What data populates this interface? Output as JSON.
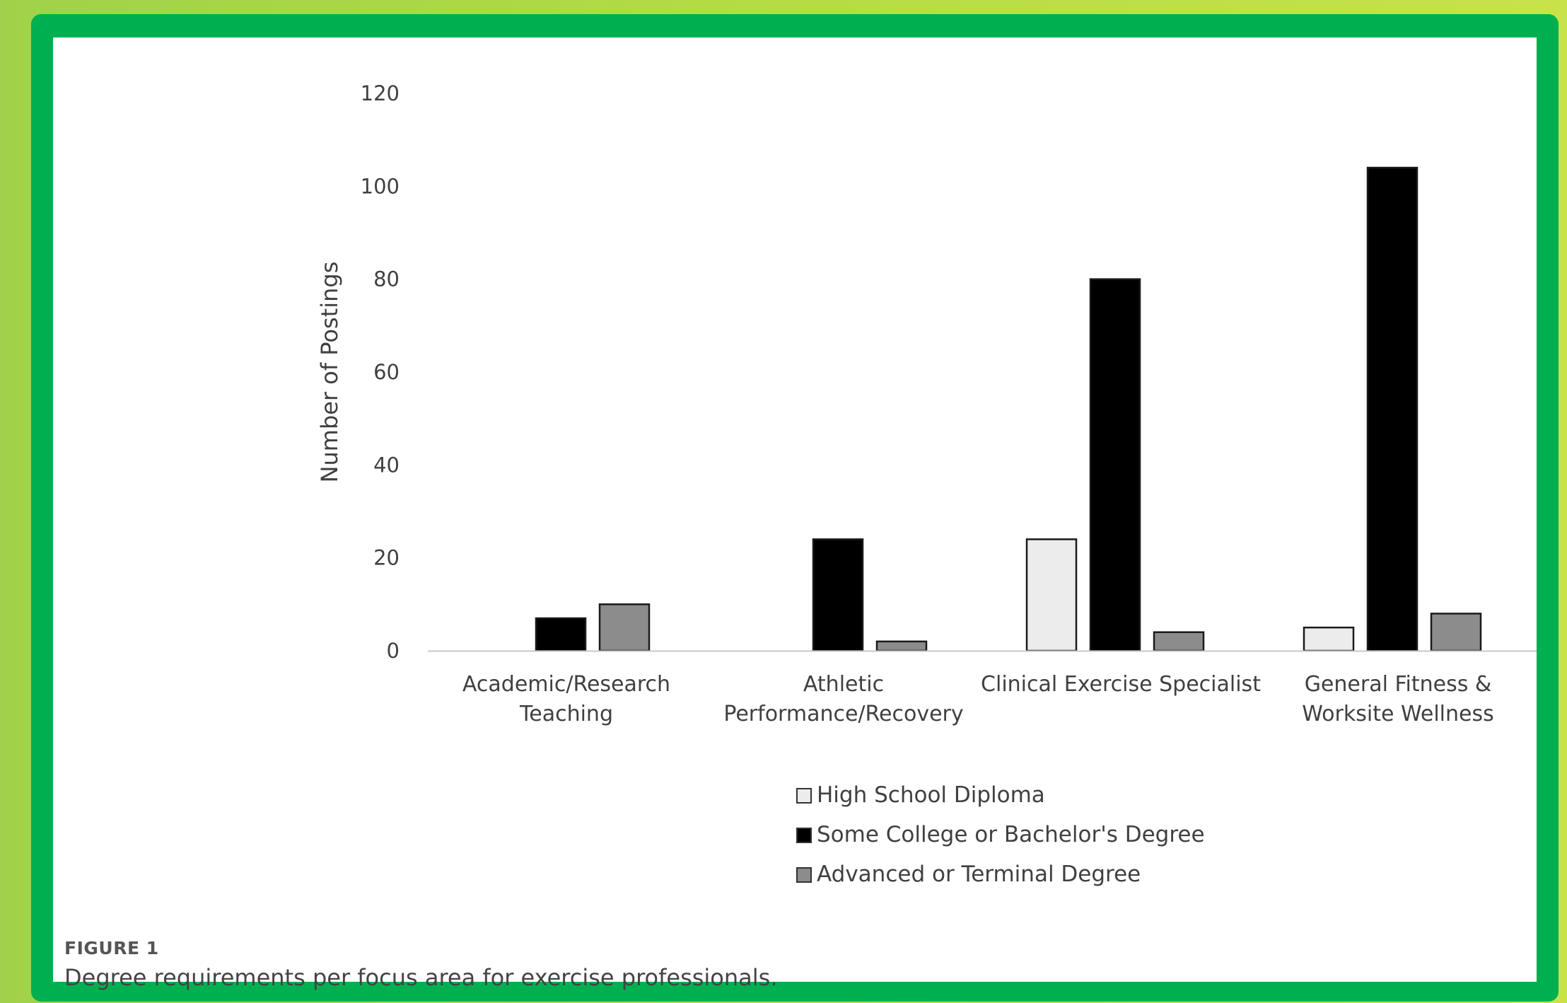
{
  "colors": {
    "background": "#b5dc44",
    "frame": "#00b050",
    "card": "#ffffff"
  },
  "figure": {
    "label": "FIGURE 1",
    "caption": "Degree requirements per focus area for exercise professionals."
  },
  "chart_data": {
    "type": "bar",
    "title": "",
    "xlabel": "",
    "ylabel": "Number of Postings",
    "ylim": [
      0,
      120
    ],
    "yticks": [
      0,
      20,
      40,
      60,
      80,
      100,
      120
    ],
    "grid": false,
    "legend_position": "bottom",
    "categories": [
      [
        "Academic/Research",
        "Teaching"
      ],
      [
        "Athletic",
        "Performance/Recovery"
      ],
      [
        "Clinical Exercise Specialist"
      ],
      [
        "General Fitness &",
        "Worksite Wellness"
      ]
    ],
    "series": [
      {
        "name": "High School Diploma",
        "color": "#ececec",
        "values": [
          0,
          0,
          24,
          5
        ]
      },
      {
        "name": "Some College or Bachelor's Degree",
        "color": "#000000",
        "values": [
          7,
          24,
          80,
          104
        ]
      },
      {
        "name": "Advanced or Terminal Degree",
        "color": "#8c8c8c",
        "values": [
          10,
          2,
          4,
          8
        ]
      }
    ]
  }
}
